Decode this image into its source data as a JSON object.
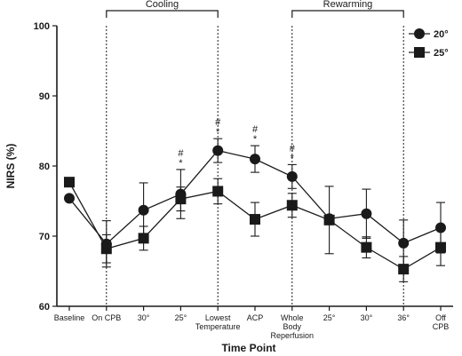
{
  "chart_data": {
    "type": "line",
    "xlabel": "Time Point",
    "ylabel": "NIRS (%)",
    "ylim": [
      60,
      100
    ],
    "yticks": [
      60,
      70,
      80,
      90,
      100
    ],
    "categories": [
      [
        "Baseline"
      ],
      [
        "On CPB"
      ],
      [
        "30°"
      ],
      [
        "25°"
      ],
      [
        "Lowest",
        "Temperature"
      ],
      [
        "ACP"
      ],
      [
        "Whole",
        "Body",
        "Reperfusion"
      ],
      [
        "25°"
      ],
      [
        "30°"
      ],
      [
        "36°"
      ],
      [
        "Off",
        "CPB"
      ]
    ],
    "series": [
      {
        "name": "20°",
        "marker": "circle",
        "values": [
          75.4,
          68.9,
          73.7,
          76.0,
          82.2,
          81.0,
          78.5,
          72.5,
          73.2,
          69.0,
          71.2
        ],
        "error": [
          null,
          3.3,
          3.9,
          3.5,
          1.7,
          1.9,
          1.7,
          null,
          3.5,
          3.3,
          3.6
        ]
      },
      {
        "name": "25°",
        "marker": "square",
        "values": [
          77.7,
          68.2,
          69.7,
          75.3,
          76.4,
          72.4,
          74.4,
          72.3,
          68.4,
          65.3,
          68.4
        ],
        "error": [
          null,
          2.0,
          1.7,
          1.7,
          1.8,
          2.4,
          1.7,
          4.8,
          1.5,
          1.8,
          2.6
        ]
      }
    ],
    "significance": [
      {
        "index": 3,
        "symbols": [
          "#",
          "*"
        ]
      },
      {
        "index": 4,
        "symbols": [
          "#",
          "*"
        ]
      },
      {
        "index": 5,
        "symbols": [
          "#",
          "*"
        ]
      },
      {
        "index": 6,
        "symbols": [
          "#",
          "*"
        ]
      }
    ],
    "phases": [
      {
        "label": "Cooling",
        "from": 1,
        "to": 4
      },
      {
        "label": "Rewarming",
        "from": 6,
        "to": 9
      }
    ],
    "dashed_lines_at": [
      1,
      4,
      6,
      9
    ],
    "legend": {
      "position": "top-right"
    },
    "grid": false
  }
}
